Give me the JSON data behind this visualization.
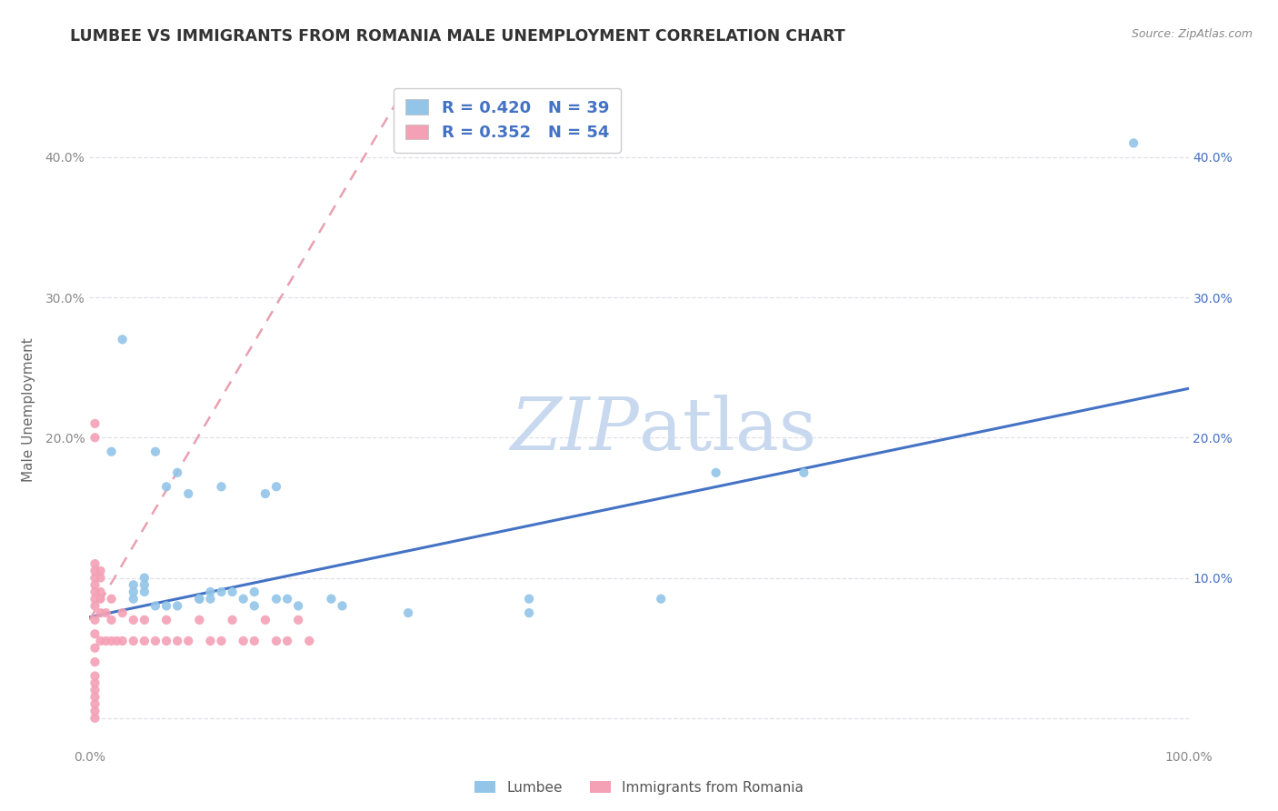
{
  "title": "LUMBEE VS IMMIGRANTS FROM ROMANIA MALE UNEMPLOYMENT CORRELATION CHART",
  "source": "Source: ZipAtlas.com",
  "ylabel": "Male Unemployment",
  "xlim": [
    0.0,
    1.0
  ],
  "ylim": [
    -0.02,
    0.46
  ],
  "xticks": [
    0.0,
    0.1,
    0.2,
    0.3,
    0.4,
    0.5,
    0.6,
    0.7,
    0.8,
    0.9,
    1.0
  ],
  "xticklabels": [
    "0.0%",
    "",
    "",
    "",
    "",
    "",
    "",
    "",
    "",
    "",
    "100.0%"
  ],
  "yticks": [
    0.0,
    0.1,
    0.2,
    0.3,
    0.4
  ],
  "yticklabels_left": [
    "",
    "",
    "20.0%",
    "30.0%",
    "40.0%"
  ],
  "yticklabels_right": [
    "",
    "10.0%",
    "20.0%",
    "30.0%",
    "40.0%"
  ],
  "lumbee_color": "#92C5E8",
  "romania_color": "#F4A0B5",
  "lumbee_trend_color": "#4472C4",
  "romania_trend_color": "#E8A0B0",
  "grid_color": "#E0E0E8",
  "watermark_color": "#C8D8EE",
  "legend_label1": "R = 0.420   N = 39",
  "legend_label2": "R = 0.352   N = 54",
  "lumbee_x": [
    0.02,
    0.03,
    0.04,
    0.04,
    0.04,
    0.05,
    0.05,
    0.05,
    0.06,
    0.06,
    0.07,
    0.07,
    0.08,
    0.08,
    0.09,
    0.1,
    0.1,
    0.11,
    0.11,
    0.12,
    0.12,
    0.13,
    0.14,
    0.15,
    0.15,
    0.16,
    0.17,
    0.17,
    0.18,
    0.19,
    0.22,
    0.23,
    0.29,
    0.4,
    0.4,
    0.52,
    0.57,
    0.65,
    0.95
  ],
  "lumbee_y": [
    0.19,
    0.27,
    0.085,
    0.09,
    0.095,
    0.09,
    0.1,
    0.095,
    0.19,
    0.08,
    0.165,
    0.08,
    0.175,
    0.08,
    0.16,
    0.085,
    0.085,
    0.09,
    0.085,
    0.09,
    0.165,
    0.09,
    0.085,
    0.09,
    0.08,
    0.16,
    0.085,
    0.165,
    0.085,
    0.08,
    0.085,
    0.08,
    0.075,
    0.085,
    0.075,
    0.085,
    0.175,
    0.175,
    0.41
  ],
  "romania_x": [
    0.005,
    0.005,
    0.005,
    0.005,
    0.005,
    0.005,
    0.005,
    0.005,
    0.005,
    0.005,
    0.005,
    0.005,
    0.005,
    0.005,
    0.005,
    0.005,
    0.005,
    0.005,
    0.005,
    0.005,
    0.01,
    0.01,
    0.01,
    0.01,
    0.01,
    0.01,
    0.015,
    0.015,
    0.02,
    0.02,
    0.02,
    0.025,
    0.03,
    0.03,
    0.04,
    0.04,
    0.05,
    0.05,
    0.06,
    0.07,
    0.07,
    0.08,
    0.09,
    0.1,
    0.11,
    0.12,
    0.13,
    0.14,
    0.15,
    0.16,
    0.17,
    0.18,
    0.19,
    0.2
  ],
  "romania_y": [
    0.0,
    0.005,
    0.01,
    0.015,
    0.02,
    0.025,
    0.03,
    0.04,
    0.05,
    0.06,
    0.07,
    0.08,
    0.085,
    0.09,
    0.095,
    0.1,
    0.105,
    0.11,
    0.2,
    0.21,
    0.055,
    0.075,
    0.085,
    0.09,
    0.1,
    0.105,
    0.055,
    0.075,
    0.055,
    0.07,
    0.085,
    0.055,
    0.055,
    0.075,
    0.055,
    0.07,
    0.055,
    0.07,
    0.055,
    0.055,
    0.07,
    0.055,
    0.055,
    0.07,
    0.055,
    0.055,
    0.07,
    0.055,
    0.055,
    0.07,
    0.055,
    0.055,
    0.07,
    0.055
  ],
  "lumbee_trend_x": [
    0.0,
    1.0
  ],
  "lumbee_trend_y": [
    0.072,
    0.235
  ],
  "romania_trend_x": [
    0.0,
    0.28
  ],
  "romania_trend_y": [
    0.07,
    0.44
  ]
}
